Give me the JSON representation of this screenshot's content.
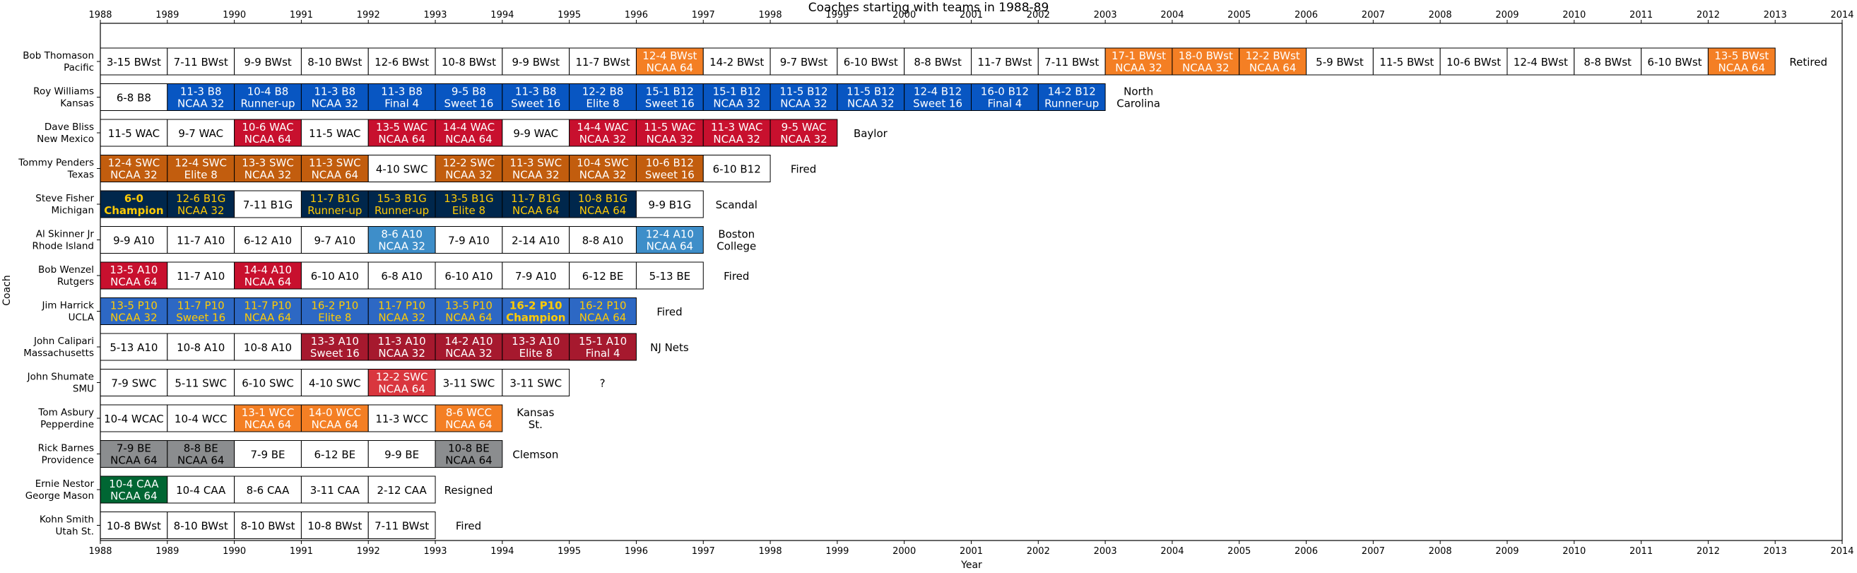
{
  "chart_data": {
    "type": "timeline",
    "title": "Coaches starting with teams in 1988-89",
    "xlabel": "Year",
    "ylabel": "Coach",
    "xlim": [
      1988,
      2014
    ],
    "xticks": [
      "1988",
      "1989",
      "1990",
      "1991",
      "1992",
      "1993",
      "1994",
      "1995",
      "1996",
      "1997",
      "1998",
      "1999",
      "2000",
      "2001",
      "2002",
      "2003",
      "2004",
      "2005",
      "2006",
      "2007",
      "2008",
      "2009",
      "2010",
      "2011",
      "2012",
      "2013",
      "2014"
    ],
    "colors": {
      "white": "#ffffff",
      "orange": "#f47f24",
      "blue": "#0856c2",
      "crimson": "#c8102e",
      "burnt": "#c25d0e",
      "navy": "#00274c",
      "gold": "#ffcb05",
      "lightblue": "#3e8ec9",
      "uclablue": "#2d68c4",
      "maroon": "#a6192e",
      "red": "#d9363e",
      "gray": "#8b8d8f",
      "green": "#006633"
    },
    "coaches": [
      {
        "name": "Bob Thomason",
        "team": "Pacific",
        "outcome": "Retired",
        "fill": "orange",
        "color": "white",
        "seasons": [
          {
            "l1": "3-15 BWst",
            "l2": ""
          },
          {
            "l1": "7-11 BWst",
            "l2": ""
          },
          {
            "l1": "9-9 BWst",
            "l2": ""
          },
          {
            "l1": "8-10 BWst",
            "l2": ""
          },
          {
            "l1": "12-6 BWst",
            "l2": ""
          },
          {
            "l1": "10-8 BWst",
            "l2": ""
          },
          {
            "l1": "9-9 BWst",
            "l2": ""
          },
          {
            "l1": "11-7 BWst",
            "l2": ""
          },
          {
            "l1": "12-4 BWst",
            "l2": "NCAA 64"
          },
          {
            "l1": "14-2 BWst",
            "l2": ""
          },
          {
            "l1": "9-7 BWst",
            "l2": ""
          },
          {
            "l1": "6-10 BWst",
            "l2": ""
          },
          {
            "l1": "8-8 BWst",
            "l2": ""
          },
          {
            "l1": "11-7 BWst",
            "l2": ""
          },
          {
            "l1": "7-11 BWst",
            "l2": ""
          },
          {
            "l1": "17-1 BWst",
            "l2": "NCAA 32"
          },
          {
            "l1": "18-0 BWst",
            "l2": "NCAA 32"
          },
          {
            "l1": "12-2 BWst",
            "l2": "NCAA 64"
          },
          {
            "l1": "5-9 BWst",
            "l2": ""
          },
          {
            "l1": "11-5 BWst",
            "l2": ""
          },
          {
            "l1": "10-6 BWst",
            "l2": ""
          },
          {
            "l1": "12-4 BWst",
            "l2": ""
          },
          {
            "l1": "8-8 BWst",
            "l2": ""
          },
          {
            "l1": "6-10 BWst",
            "l2": ""
          },
          {
            "l1": "13-5 BWst",
            "l2": "NCAA 64"
          }
        ]
      },
      {
        "name": "Roy Williams",
        "team": "Kansas",
        "outcome": "North Carolina",
        "fill": "blue",
        "color": "white",
        "seasons": [
          {
            "l1": "6-8 B8",
            "l2": ""
          },
          {
            "l1": "11-3 B8",
            "l2": "NCAA 32"
          },
          {
            "l1": "10-4 B8",
            "l2": "Runner-up"
          },
          {
            "l1": "11-3 B8",
            "l2": "NCAA 32"
          },
          {
            "l1": "11-3 B8",
            "l2": "Final 4"
          },
          {
            "l1": "9-5 B8",
            "l2": "Sweet 16"
          },
          {
            "l1": "11-3 B8",
            "l2": "Sweet 16"
          },
          {
            "l1": "12-2 B8",
            "l2": "Elite 8"
          },
          {
            "l1": "15-1 B12",
            "l2": "Sweet 16"
          },
          {
            "l1": "15-1 B12",
            "l2": "NCAA 32"
          },
          {
            "l1": "11-5 B12",
            "l2": "NCAA 32"
          },
          {
            "l1": "11-5 B12",
            "l2": "NCAA 32"
          },
          {
            "l1": "12-4 B12",
            "l2": "Sweet 16"
          },
          {
            "l1": "16-0 B12",
            "l2": "Final 4"
          },
          {
            "l1": "14-2 B12",
            "l2": "Runner-up"
          }
        ]
      },
      {
        "name": "Dave Bliss",
        "team": "New Mexico",
        "outcome": "Baylor",
        "fill": "crimson",
        "color": "white",
        "seasons": [
          {
            "l1": "11-5 WAC",
            "l2": ""
          },
          {
            "l1": "9-7 WAC",
            "l2": ""
          },
          {
            "l1": "10-6 WAC",
            "l2": "NCAA 64"
          },
          {
            "l1": "11-5 WAC",
            "l2": ""
          },
          {
            "l1": "13-5 WAC",
            "l2": "NCAA 64"
          },
          {
            "l1": "14-4 WAC",
            "l2": "NCAA 64"
          },
          {
            "l1": "9-9 WAC",
            "l2": ""
          },
          {
            "l1": "14-4 WAC",
            "l2": "NCAA 32"
          },
          {
            "l1": "11-5 WAC",
            "l2": "NCAA 32"
          },
          {
            "l1": "11-3 WAC",
            "l2": "NCAA 32"
          },
          {
            "l1": "9-5 WAC",
            "l2": "NCAA 32"
          }
        ]
      },
      {
        "name": "Tommy Penders",
        "team": "Texas",
        "outcome": "Fired",
        "fill": "burnt",
        "color": "white",
        "seasons": [
          {
            "l1": "12-4 SWC",
            "l2": "NCAA 32"
          },
          {
            "l1": "12-4 SWC",
            "l2": "Elite 8"
          },
          {
            "l1": "13-3 SWC",
            "l2": "NCAA 32"
          },
          {
            "l1": "11-3 SWC",
            "l2": "NCAA 64"
          },
          {
            "l1": "4-10 SWC",
            "l2": ""
          },
          {
            "l1": "12-2 SWC",
            "l2": "NCAA 32"
          },
          {
            "l1": "11-3 SWC",
            "l2": "NCAA 32"
          },
          {
            "l1": "10-4 SWC",
            "l2": "NCAA 32"
          },
          {
            "l1": "10-6 B12",
            "l2": "Sweet 16"
          },
          {
            "l1": "6-10 B12",
            "l2": ""
          }
        ]
      },
      {
        "name": "Steve Fisher",
        "team": "Michigan",
        "outcome": "Scandal",
        "fill": "navy",
        "color": "gold",
        "seasons": [
          {
            "l1": "6-0",
            "l2": "Champion",
            "bold": true
          },
          {
            "l1": "12-6 B1G",
            "l2": "NCAA 32"
          },
          {
            "l1": "7-11 B1G",
            "l2": ""
          },
          {
            "l1": "11-7 B1G",
            "l2": "Runner-up"
          },
          {
            "l1": "15-3 B1G",
            "l2": "Runner-up"
          },
          {
            "l1": "13-5 B1G",
            "l2": "Elite 8"
          },
          {
            "l1": "11-7 B1G",
            "l2": "NCAA 64"
          },
          {
            "l1": "10-8 B1G",
            "l2": "NCAA 64"
          },
          {
            "l1": "9-9 B1G",
            "l2": ""
          }
        ]
      },
      {
        "name": "Al Skinner Jr",
        "team": "Rhode Island",
        "outcome": "Boston College",
        "fill": "lightblue",
        "color": "white",
        "seasons": [
          {
            "l1": "9-9 A10",
            "l2": ""
          },
          {
            "l1": "11-7 A10",
            "l2": ""
          },
          {
            "l1": "6-12 A10",
            "l2": ""
          },
          {
            "l1": "9-7 A10",
            "l2": ""
          },
          {
            "l1": "8-6 A10",
            "l2": "NCAA 32"
          },
          {
            "l1": "7-9 A10",
            "l2": ""
          },
          {
            "l1": "2-14 A10",
            "l2": ""
          },
          {
            "l1": "8-8 A10",
            "l2": ""
          },
          {
            "l1": "12-4 A10",
            "l2": "NCAA 64"
          }
        ]
      },
      {
        "name": "Bob Wenzel",
        "team": "Rutgers",
        "outcome": "Fired",
        "fill": "crimson",
        "color": "white",
        "seasons": [
          {
            "l1": "13-5 A10",
            "l2": "NCAA 64"
          },
          {
            "l1": "11-7 A10",
            "l2": ""
          },
          {
            "l1": "14-4 A10",
            "l2": "NCAA 64"
          },
          {
            "l1": "6-10 A10",
            "l2": ""
          },
          {
            "l1": "6-8 A10",
            "l2": ""
          },
          {
            "l1": "6-10 A10",
            "l2": ""
          },
          {
            "l1": "7-9 A10",
            "l2": ""
          },
          {
            "l1": "6-12 BE",
            "l2": ""
          },
          {
            "l1": "5-13 BE",
            "l2": ""
          }
        ]
      },
      {
        "name": "Jim Harrick",
        "team": "UCLA",
        "outcome": "Fired",
        "fill": "uclablue",
        "color": "gold",
        "seasons": [
          {
            "l1": "13-5 P10",
            "l2": "NCAA 32"
          },
          {
            "l1": "11-7 P10",
            "l2": "Sweet 16"
          },
          {
            "l1": "11-7 P10",
            "l2": "NCAA 64"
          },
          {
            "l1": "16-2 P10",
            "l2": "Elite 8"
          },
          {
            "l1": "11-7 P10",
            "l2": "NCAA 32"
          },
          {
            "l1": "13-5 P10",
            "l2": "NCAA 64"
          },
          {
            "l1": "16-2 P10",
            "l2": "Champion",
            "bold": true
          },
          {
            "l1": "16-2 P10",
            "l2": "NCAA 64"
          }
        ]
      },
      {
        "name": "John Calipari",
        "team": "Massachusetts",
        "outcome": "NJ Nets",
        "fill": "maroon",
        "color": "white",
        "seasons": [
          {
            "l1": "5-13 A10",
            "l2": ""
          },
          {
            "l1": "10-8 A10",
            "l2": ""
          },
          {
            "l1": "10-8 A10",
            "l2": ""
          },
          {
            "l1": "13-3 A10",
            "l2": "Sweet 16"
          },
          {
            "l1": "11-3 A10",
            "l2": "NCAA 32"
          },
          {
            "l1": "14-2 A10",
            "l2": "NCAA 32"
          },
          {
            "l1": "13-3 A10",
            "l2": "Elite 8"
          },
          {
            "l1": "15-1 A10",
            "l2": "Final 4"
          }
        ]
      },
      {
        "name": "John Shumate",
        "team": "SMU",
        "outcome": "?",
        "fill": "red",
        "color": "white",
        "seasons": [
          {
            "l1": "7-9 SWC",
            "l2": ""
          },
          {
            "l1": "5-11 SWC",
            "l2": ""
          },
          {
            "l1": "6-10 SWC",
            "l2": ""
          },
          {
            "l1": "4-10 SWC",
            "l2": ""
          },
          {
            "l1": "12-2 SWC",
            "l2": "NCAA 64"
          },
          {
            "l1": "3-11 SWC",
            "l2": ""
          },
          {
            "l1": "3-11 SWC",
            "l2": ""
          }
        ]
      },
      {
        "name": "Tom Asbury",
        "team": "Pepperdine",
        "outcome": "Kansas St.",
        "fill": "orange",
        "color": "white",
        "seasons": [
          {
            "l1": "10-4 WCAC",
            "l2": ""
          },
          {
            "l1": "10-4 WCC",
            "l2": ""
          },
          {
            "l1": "13-1 WCC",
            "l2": "NCAA 64"
          },
          {
            "l1": "14-0 WCC",
            "l2": "NCAA 64"
          },
          {
            "l1": "11-3 WCC",
            "l2": ""
          },
          {
            "l1": "8-6 WCC",
            "l2": "NCAA 64"
          }
        ]
      },
      {
        "name": "Rick Barnes",
        "team": "Providence",
        "outcome": "Clemson",
        "fill": "gray",
        "color": "black",
        "seasons": [
          {
            "l1": "7-9 BE",
            "l2": "NCAA 64"
          },
          {
            "l1": "8-8 BE",
            "l2": "NCAA 64"
          },
          {
            "l1": "7-9 BE",
            "l2": ""
          },
          {
            "l1": "6-12 BE",
            "l2": ""
          },
          {
            "l1": "9-9 BE",
            "l2": ""
          },
          {
            "l1": "10-8 BE",
            "l2": "NCAA 64"
          }
        ]
      },
      {
        "name": "Ernie Nestor",
        "team": "George Mason",
        "outcome": "Resigned",
        "fill": "green",
        "color": "white",
        "seasons": [
          {
            "l1": "10-4 CAA",
            "l2": "NCAA 64"
          },
          {
            "l1": "10-4 CAA",
            "l2": ""
          },
          {
            "l1": "8-6 CAA",
            "l2": ""
          },
          {
            "l1": "3-11 CAA",
            "l2": ""
          },
          {
            "l1": "2-12 CAA",
            "l2": ""
          }
        ]
      },
      {
        "name": "Kohn Smith",
        "team": "Utah St.",
        "outcome": "Fired",
        "fill": "orange",
        "color": "white",
        "seasons": [
          {
            "l1": "10-8 BWst",
            "l2": ""
          },
          {
            "l1": "8-10 BWst",
            "l2": ""
          },
          {
            "l1": "8-10 BWst",
            "l2": ""
          },
          {
            "l1": "10-8 BWst",
            "l2": ""
          },
          {
            "l1": "7-11 BWst",
            "l2": ""
          }
        ]
      }
    ]
  }
}
